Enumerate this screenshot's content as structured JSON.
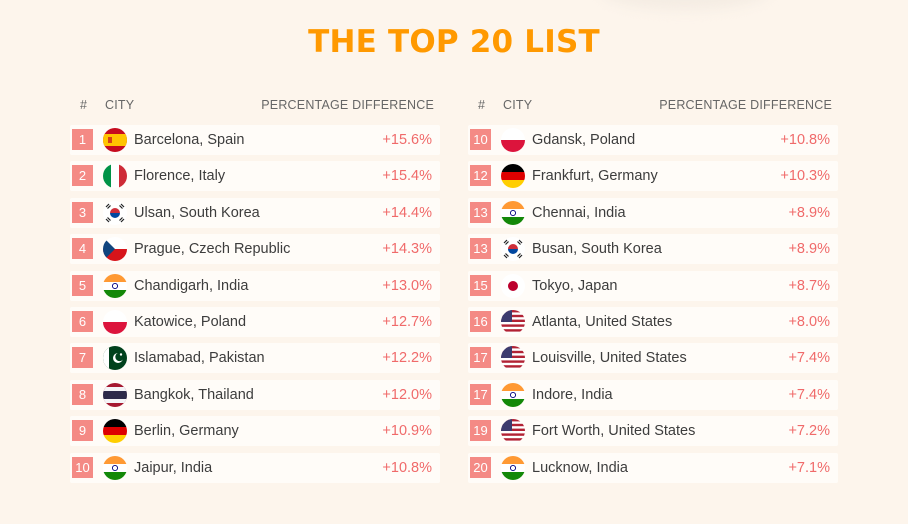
{
  "title": "THE TOP 20 LIST",
  "headers": {
    "num": "#",
    "city": "CITY",
    "pct": "PERCENTAGE DIFFERENCE"
  },
  "colors": {
    "title": "#ff9900",
    "rank_bg": "#f48a85",
    "pct_text": "#f06a6a"
  },
  "left": [
    {
      "rank": "1",
      "city": "Barcelona, Spain",
      "pct": "+15.6%",
      "flag": "spain-flag-icon"
    },
    {
      "rank": "2",
      "city": "Florence, Italy",
      "pct": "+15.4%",
      "flag": "italy-flag-icon"
    },
    {
      "rank": "3",
      "city": "Ulsan, South Korea",
      "pct": "+14.4%",
      "flag": "south-korea-flag-icon"
    },
    {
      "rank": "4",
      "city": "Prague, Czech Republic",
      "pct": "+14.3%",
      "flag": "czech-flag-icon"
    },
    {
      "rank": "5",
      "city": "Chandigarh, India",
      "pct": "+13.0%",
      "flag": "india-flag-icon"
    },
    {
      "rank": "6",
      "city": "Katowice, Poland",
      "pct": "+12.7%",
      "flag": "poland-flag-icon"
    },
    {
      "rank": "7",
      "city": "Islamabad, Pakistan",
      "pct": "+12.2%",
      "flag": "pakistan-flag-icon"
    },
    {
      "rank": "8",
      "city": "Bangkok, Thailand",
      "pct": "+12.0%",
      "flag": "thailand-flag-icon"
    },
    {
      "rank": "9",
      "city": "Berlin, Germany",
      "pct": "+10.9%",
      "flag": "germany-flag-icon"
    },
    {
      "rank": "10",
      "city": "Jaipur, India",
      "pct": "+10.8%",
      "flag": "india-flag-icon"
    }
  ],
  "right": [
    {
      "rank": "10",
      "city": "Gdansk, Poland",
      "pct": "+10.8%",
      "flag": "poland-flag-icon"
    },
    {
      "rank": "12",
      "city": "Frankfurt, Germany",
      "pct": "+10.3%",
      "flag": "germany-flag-icon"
    },
    {
      "rank": "13",
      "city": "Chennai, India",
      "pct": "+8.9%",
      "flag": "india-flag-icon"
    },
    {
      "rank": "13",
      "city": "Busan, South Korea",
      "pct": "+8.9%",
      "flag": "south-korea-flag-icon"
    },
    {
      "rank": "15",
      "city": "Tokyo, Japan",
      "pct": "+8.7%",
      "flag": "japan-flag-icon"
    },
    {
      "rank": "16",
      "city": "Atlanta,  United States",
      "pct": "+8.0%",
      "flag": "usa-flag-icon"
    },
    {
      "rank": "17",
      "city": "Louisville, United States",
      "pct": "+7.4%",
      "flag": "usa-flag-icon"
    },
    {
      "rank": "17",
      "city": "Indore, India",
      "pct": "+7.4%",
      "flag": "india-flag-icon"
    },
    {
      "rank": "19",
      "city": "Fort Worth, United States",
      "pct": "+7.2%",
      "flag": "usa-flag-icon"
    },
    {
      "rank": "20",
      "city": "Lucknow, India",
      "pct": "+7.1%",
      "flag": "india-flag-icon"
    }
  ]
}
